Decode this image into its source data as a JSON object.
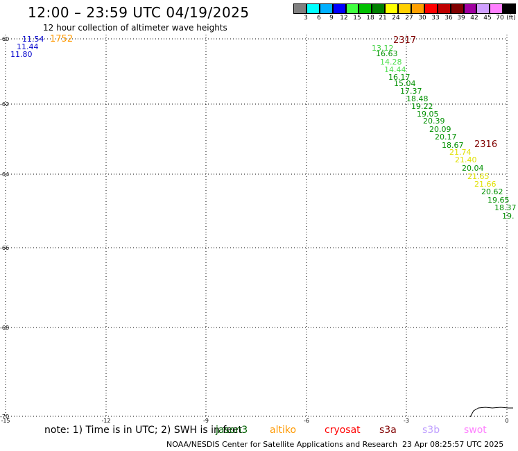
{
  "header": {
    "title": "12:00 – 23:59 UTC 04/19/2025",
    "subtitle": "12 hour collection of altimeter wave heights"
  },
  "legend": {
    "unit": "(ft)",
    "colors": [
      "#808080",
      "#00ffff",
      "#00b0ff",
      "#0000ff",
      "#40ff40",
      "#00c000",
      "#008000",
      "#ffff00",
      "#ffd000",
      "#ffa000",
      "#ff0000",
      "#c00000",
      "#800000",
      "#a000a0",
      "#d0a0ff",
      "#ff80ff",
      "#000000"
    ],
    "labels": [
      "3",
      "6",
      "9",
      "12",
      "15",
      "18",
      "21",
      "24",
      "27",
      "30",
      "33",
      "36",
      "39",
      "42",
      "45",
      "70"
    ]
  },
  "axes": {
    "y_labels": [
      "-60",
      "-62",
      "-64",
      "-66",
      "-68",
      "-70"
    ],
    "x_labels": [
      "-15",
      "-12",
      "-9",
      "-6",
      "-3",
      "0"
    ]
  },
  "map_labels": {
    "track_times": [
      {
        "text": "1752",
        "color": "#ff9900"
      },
      {
        "text": "2317",
        "color": "#800000"
      },
      {
        "text": "2316",
        "color": "#800000"
      }
    ],
    "wave_values": [
      {
        "text": "11.54",
        "color": "#0000cc"
      },
      {
        "text": "11.44",
        "color": "#0000cc"
      },
      {
        "text": "11.80",
        "color": "#0000cc"
      },
      {
        "text": "13.12",
        "color": "#40d040"
      },
      {
        "text": "16.63",
        "color": "#009000"
      },
      {
        "text": "14.28",
        "color": "#50e050"
      },
      {
        "text": "14.44",
        "color": "#50e050"
      },
      {
        "text": "16.17",
        "color": "#009000"
      },
      {
        "text": "15.04",
        "color": "#009000"
      },
      {
        "text": "17.37",
        "color": "#009000"
      },
      {
        "text": "18.48",
        "color": "#009000"
      },
      {
        "text": "19.22",
        "color": "#009000"
      },
      {
        "text": "19.05",
        "color": "#009000"
      },
      {
        "text": "20.39",
        "color": "#009000"
      },
      {
        "text": "20.09",
        "color": "#009000"
      },
      {
        "text": "20.17",
        "color": "#009000"
      },
      {
        "text": "18.67",
        "color": "#009000"
      },
      {
        "text": "21.74",
        "color": "#e0e000"
      },
      {
        "text": "21.40",
        "color": "#e0e000"
      },
      {
        "text": "20.04",
        "color": "#009000"
      },
      {
        "text": "21.65",
        "color": "#e0e000"
      },
      {
        "text": "21.66",
        "color": "#e0e000"
      },
      {
        "text": "20.62",
        "color": "#009000"
      },
      {
        "text": "19.65",
        "color": "#009000"
      },
      {
        "text": "18.37",
        "color": "#009000"
      },
      {
        "text": "19.",
        "color": "#009000"
      }
    ]
  },
  "note": {
    "text": "note: 1) Time is in UTC; 2) SWH is in feet",
    "satellites": [
      {
        "name": "jason3",
        "color": "#006000"
      },
      {
        "name": "altiko",
        "color": "#ff9900"
      },
      {
        "name": "cryosat",
        "color": "#ff0000"
      },
      {
        "name": "s3a",
        "color": "#800000"
      },
      {
        "name": "s3b",
        "color": "#c0a0ff"
      },
      {
        "name": "swot",
        "color": "#ff80ff"
      }
    ]
  },
  "footer": {
    "credit": "NOAA/NESDIS Center for Satellite Applications and Research",
    "timestamp": "23 Apr 08:25:57 UTC 2025"
  }
}
